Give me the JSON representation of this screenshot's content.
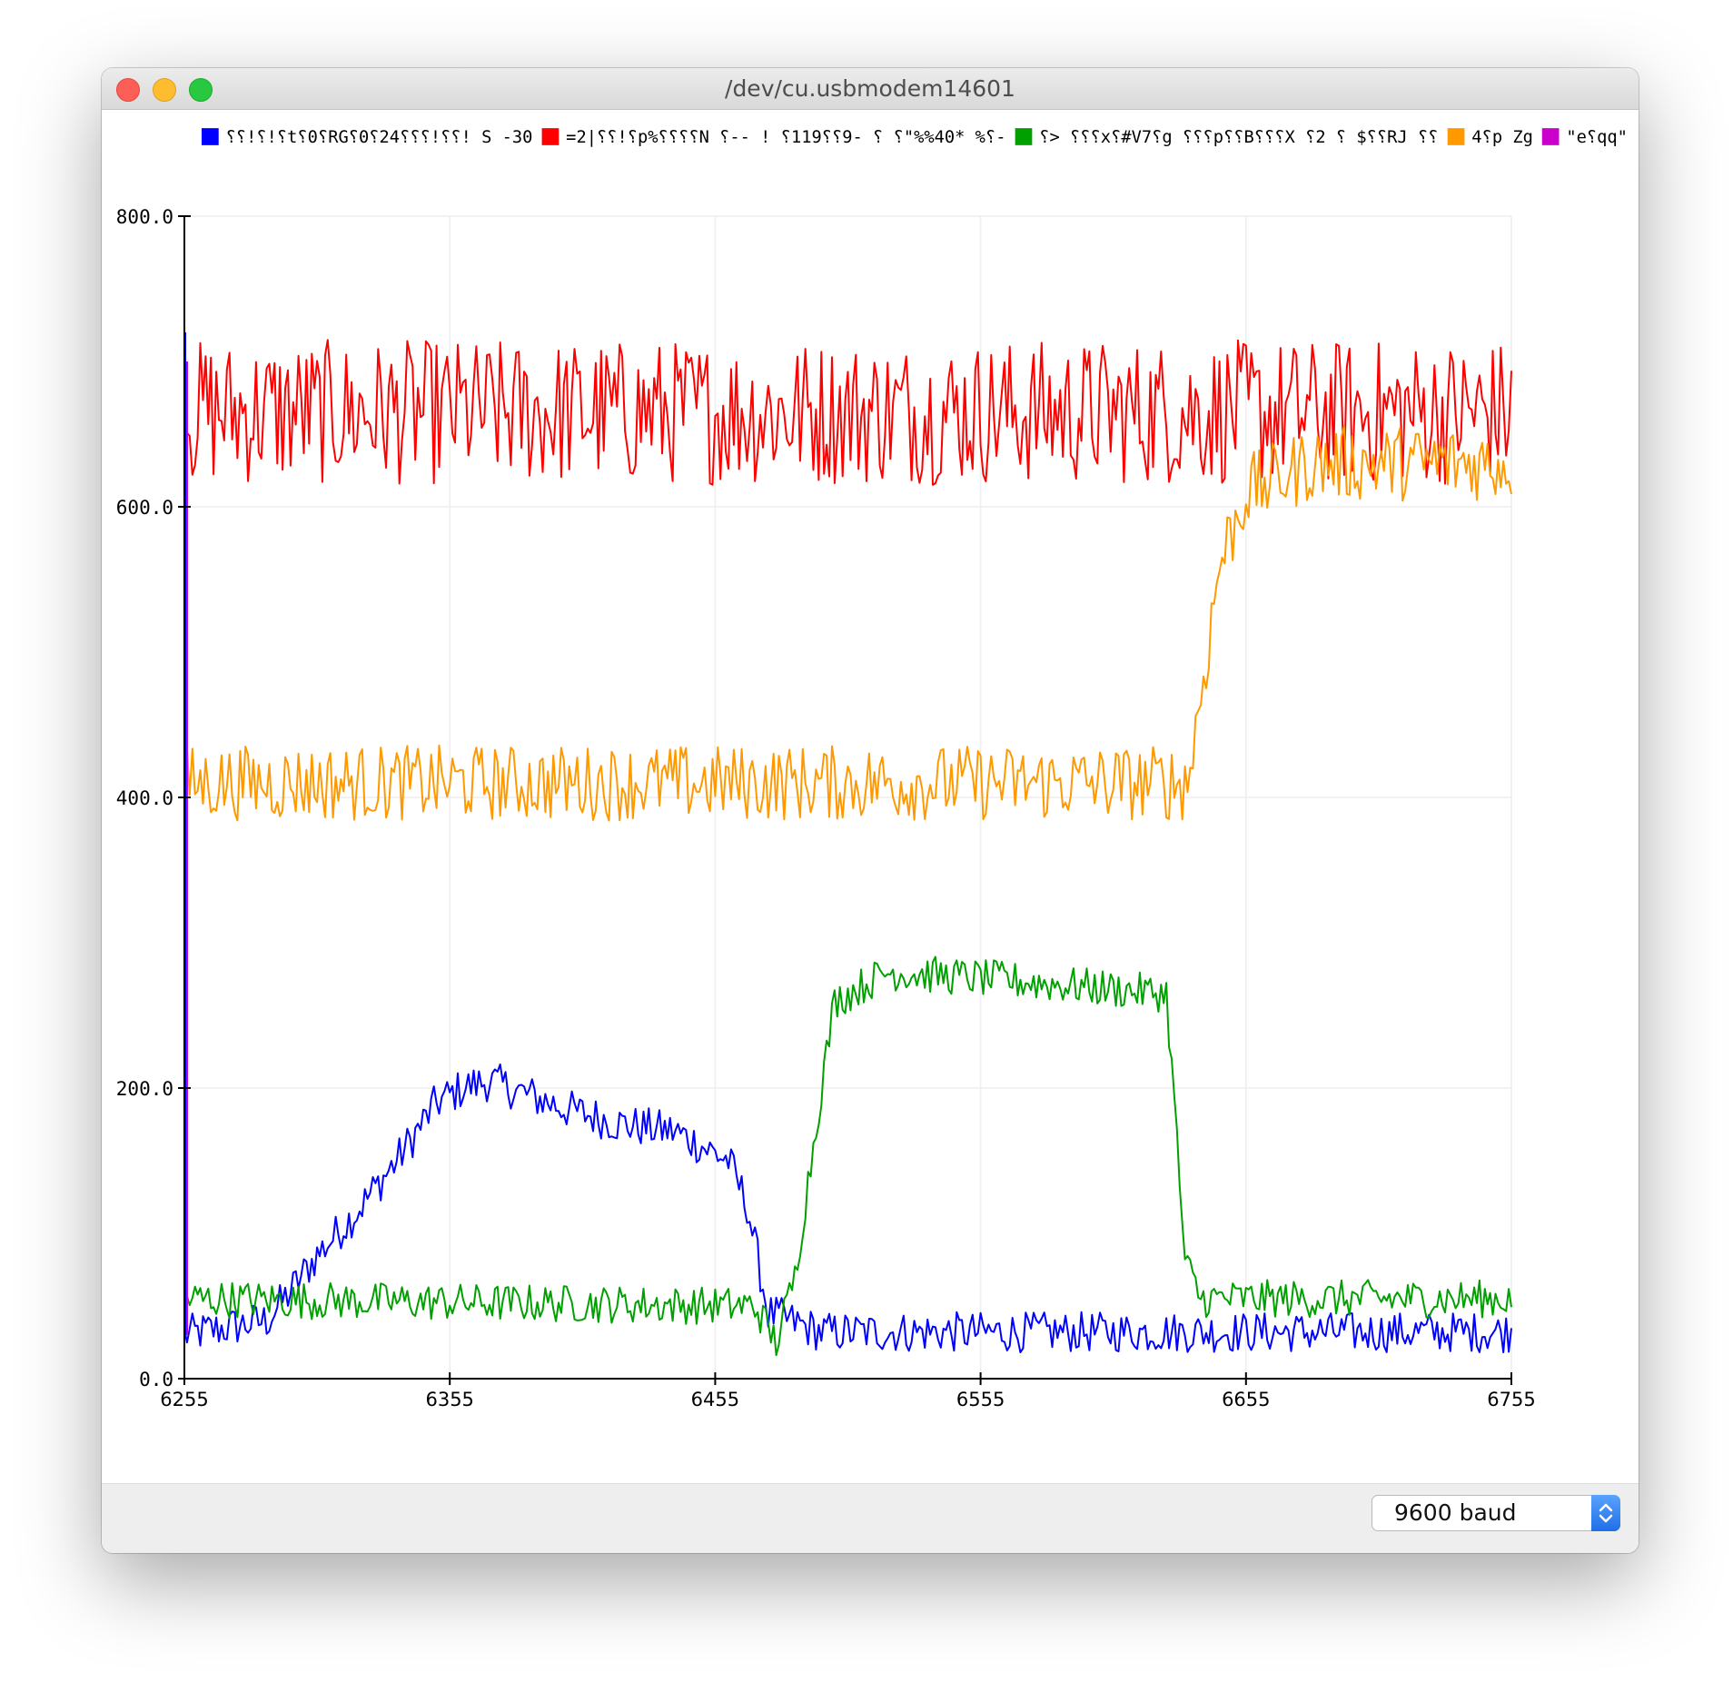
{
  "window": {
    "title": "/dev/cu.usbmodem14601"
  },
  "footer": {
    "baud_label": "9600 baud"
  },
  "chart_data": {
    "type": "line",
    "x_range": [
      6255,
      6755
    ],
    "ylim": [
      0,
      800
    ],
    "x_ticks": [
      6255,
      6355,
      6455,
      6555,
      6655,
      6755
    ],
    "y_ticks": [
      "0.0",
      "200.0",
      "400.0",
      "600.0",
      "800.0"
    ],
    "grid": true,
    "legend_position": "top",
    "series": [
      {
        "name": "؟!؟!؟؟t؟0؟RG؟؟!؟؟؟24؟0؟! S -30",
        "color": "#0000ff",
        "key_points": [
          [
            6255,
            30
          ],
          [
            6286,
            40
          ],
          [
            6295,
            60
          ],
          [
            6305,
            85
          ],
          [
            6320,
            115
          ],
          [
            6335,
            150
          ],
          [
            6350,
            190
          ],
          [
            6360,
            200
          ],
          [
            6370,
            205
          ],
          [
            6385,
            195
          ],
          [
            6400,
            185
          ],
          [
            6420,
            175
          ],
          [
            6440,
            170
          ],
          [
            6460,
            150
          ],
          [
            6467,
            120
          ],
          [
            6475,
            45
          ],
          [
            6495,
            32
          ],
          [
            6755,
            32
          ]
        ],
        "amplitude": 14
      },
      {
        "name": "=؟!؟؟|2p%؟؟؟؟N ؟% *40%%\"؟  ؟ -9؟؟119؟ ! --؟-",
        "color": "#ff0000",
        "key_points": [
          [
            6255,
            665
          ],
          [
            6755,
            665
          ]
        ],
        "amplitude": 50
      },
      {
        "name": "؟؟؟ <؟x؟#V7؟g ؟؟؟p؟؟B؟؟؟X ؟؟$ ؟ 2؟RJ ؟؟",
        "color": "#00a000",
        "key_points": [
          [
            6255,
            55
          ],
          [
            6470,
            50
          ],
          [
            6478,
            25
          ],
          [
            6485,
            70
          ],
          [
            6495,
            200
          ],
          [
            6500,
            260
          ],
          [
            6520,
            280
          ],
          [
            6560,
            275
          ],
          [
            6625,
            265
          ],
          [
            6628,
            190
          ],
          [
            6632,
            80
          ],
          [
            6638,
            55
          ],
          [
            6755,
            55
          ]
        ],
        "amplitude": 13
      },
      {
        "name": "4؟p Zg",
        "color": "#ff9900",
        "key_points": [
          [
            6255,
            410
          ],
          [
            6633,
            410
          ],
          [
            6638,
            470
          ],
          [
            6645,
            560
          ],
          [
            6655,
            610
          ],
          [
            6680,
            630
          ],
          [
            6755,
            630
          ]
        ],
        "amplitude": 26
      },
      {
        "name": "\"e؟qq\"",
        "color": "#cc00cc",
        "key_points": [],
        "amplitude": 0
      }
    ]
  }
}
